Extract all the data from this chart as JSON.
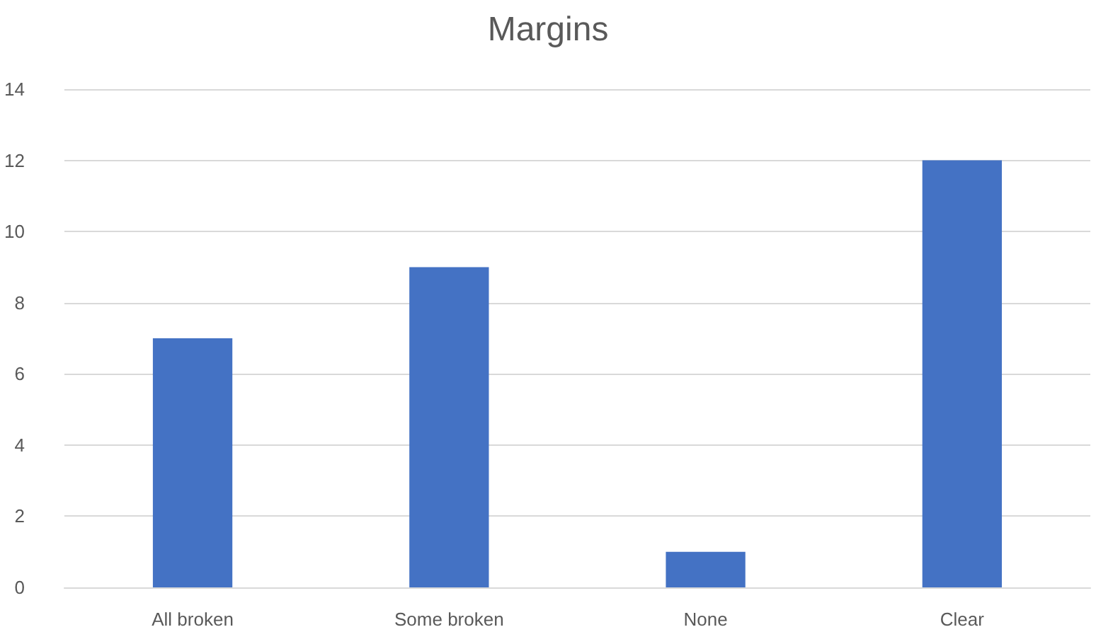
{
  "chart_data": {
    "type": "bar",
    "title": "Margins",
    "categories": [
      "All broken",
      "Some broken",
      "None",
      "Clear"
    ],
    "values": [
      7,
      9,
      1,
      12
    ],
    "color": "#4472c4",
    "ylim": [
      0,
      14
    ],
    "yticks": [
      0,
      2,
      4,
      6,
      8,
      10,
      12,
      14
    ],
    "grid": "y"
  }
}
